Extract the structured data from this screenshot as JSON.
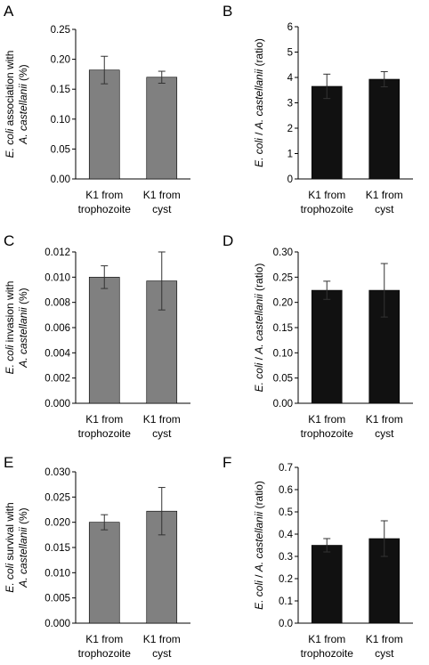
{
  "figure": {
    "background": "#ffffff"
  },
  "chart_data": [
    {
      "panel": "A",
      "type": "bar",
      "categories": [
        [
          "K1 from",
          "trophozoite"
        ],
        [
          "K1 from",
          "cyst"
        ]
      ],
      "values": [
        0.182,
        0.17
      ],
      "errors": [
        0.023,
        0.01
      ],
      "ylim": [
        0,
        0.25
      ],
      "ytick_labels": [
        "0.00",
        "0.05",
        "0.10",
        "0.15",
        "0.20",
        "0.25"
      ],
      "ylabel_parts": [
        {
          "text": "E. coli",
          "italic": true
        },
        {
          "text": " association with",
          "italic": false
        }
      ],
      "ylabel_parts2": [
        {
          "text": "A. castellanii",
          "italic": true
        },
        {
          "text": " (%)",
          "italic": false
        }
      ],
      "bar_color": "#808080"
    },
    {
      "panel": "B",
      "type": "bar",
      "categories": [
        [
          "K1 from",
          "trophozoite"
        ],
        [
          "K1 from",
          "cyst"
        ]
      ],
      "values": [
        3.65,
        3.93
      ],
      "errors": [
        0.48,
        0.3
      ],
      "ylim": [
        0,
        6
      ],
      "ytick_labels": [
        "0",
        "1",
        "2",
        "3",
        "4",
        "5",
        "6"
      ],
      "ylabel_parts": [
        {
          "text": "E. coli",
          "italic": true
        },
        {
          "text": " / ",
          "italic": false
        },
        {
          "text": "A. castellanii",
          "italic": true
        },
        {
          "text": " (ratio)",
          "italic": false
        }
      ],
      "bar_color": "#111111"
    },
    {
      "panel": "C",
      "type": "bar",
      "categories": [
        [
          "K1 from",
          "trophozoite"
        ],
        [
          "K1 from",
          "cyst"
        ]
      ],
      "values": [
        0.01,
        0.0097
      ],
      "errors": [
        0.0009,
        0.0023
      ],
      "ylim": [
        0,
        0.012
      ],
      "ytick_labels": [
        "0.000",
        "0.002",
        "0.004",
        "0.006",
        "0.008",
        "0.010",
        "0.012"
      ],
      "ylabel_parts": [
        {
          "text": "E. coli",
          "italic": true
        },
        {
          "text": " invasion with",
          "italic": false
        }
      ],
      "ylabel_parts2": [
        {
          "text": "A. castellanii",
          "italic": true
        },
        {
          "text": " (%)",
          "italic": false
        }
      ],
      "bar_color": "#808080"
    },
    {
      "panel": "D",
      "type": "bar",
      "categories": [
        [
          "K1 from",
          "trophozoite"
        ],
        [
          "K1 from",
          "cyst"
        ]
      ],
      "values": [
        0.224,
        0.224
      ],
      "errors": [
        0.018,
        0.053
      ],
      "ylim": [
        0,
        0.3
      ],
      "ytick_labels": [
        "0.00",
        "0.05",
        "0.10",
        "0.15",
        "0.20",
        "0.25",
        "0.30"
      ],
      "ylabel_parts": [
        {
          "text": "E. coli",
          "italic": true
        },
        {
          "text": " / ",
          "italic": false
        },
        {
          "text": "A. castellanii",
          "italic": true
        },
        {
          "text": " (ratio)",
          "italic": false
        }
      ],
      "bar_color": "#111111"
    },
    {
      "panel": "E",
      "type": "bar",
      "categories": [
        [
          "K1 from",
          "trophozoite"
        ],
        [
          "K1 from",
          "cyst"
        ]
      ],
      "values": [
        0.02,
        0.0222
      ],
      "errors": [
        0.0015,
        0.0047
      ],
      "ylim": [
        0,
        0.03
      ],
      "ytick_labels": [
        "0.000",
        "0.005",
        "0.010",
        "0.015",
        "0.020",
        "0.025",
        "0.030"
      ],
      "ylabel_parts": [
        {
          "text": "E. coli",
          "italic": true
        },
        {
          "text": " survival with",
          "italic": false
        }
      ],
      "ylabel_parts2": [
        {
          "text": "A. castellanii",
          "italic": true
        },
        {
          "text": " (%)",
          "italic": false
        }
      ],
      "bar_color": "#808080"
    },
    {
      "panel": "F",
      "type": "bar",
      "categories": [
        [
          "K1 from",
          "trophozoite"
        ],
        [
          "K1 from",
          "cyst"
        ]
      ],
      "values": [
        0.35,
        0.38
      ],
      "errors": [
        0.03,
        0.08
      ],
      "ylim": [
        0,
        0.7
      ],
      "ytick_labels": [
        "0.0",
        "0.1",
        "0.2",
        "0.3",
        "0.4",
        "0.5",
        "0.6",
        "0.7"
      ],
      "ylabel_parts": [
        {
          "text": "E. coli",
          "italic": true
        },
        {
          "text": " / ",
          "italic": false
        },
        {
          "text": "A. castellanii",
          "italic": true
        },
        {
          "text": " (ratio)",
          "italic": false
        }
      ],
      "bar_color": "#111111"
    }
  ]
}
